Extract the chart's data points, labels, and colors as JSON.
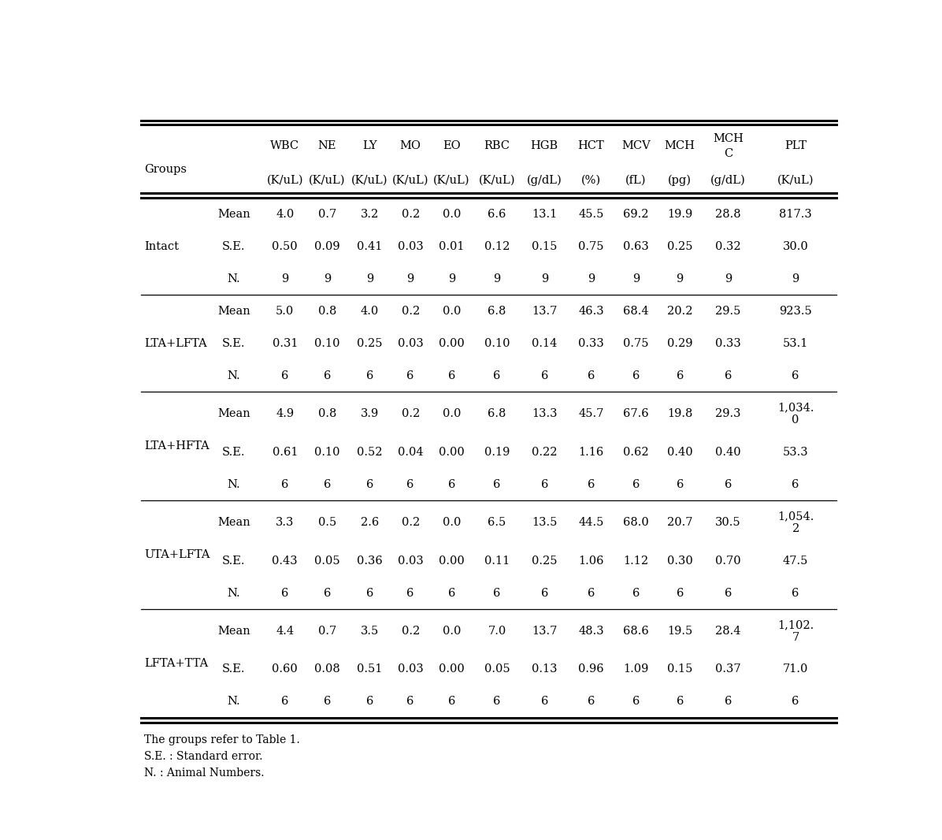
{
  "col_headers_line1": [
    "WBC",
    "NE",
    "LY",
    "MO",
    "EO",
    "RBC",
    "HGB",
    "HCT",
    "MCV",
    "MCH",
    "MCH\nC",
    "PLT"
  ],
  "col_headers_line2": [
    "(K/uL)",
    "(K/uL)",
    "(K/uL)",
    "(K/uL)",
    "(K/uL)",
    "(K/uL)",
    "(g/dL)",
    "(%)",
    "(fL)",
    "(pg)",
    "(g/dL)",
    "(K/uL)"
  ],
  "groups": [
    {
      "name": "Intact",
      "rows": [
        [
          "Mean",
          "4.0",
          "0.7",
          "3.2",
          "0.2",
          "0.0",
          "6.6",
          "13.1",
          "45.5",
          "69.2",
          "19.9",
          "28.8",
          "817.3"
        ],
        [
          "S.E.",
          "0.50",
          "0.09",
          "0.41",
          "0.03",
          "0.01",
          "0.12",
          "0.15",
          "0.75",
          "0.63",
          "0.25",
          "0.32",
          "30.0"
        ],
        [
          "N.",
          "9",
          "9",
          "9",
          "9",
          "9",
          "9",
          "9",
          "9",
          "9",
          "9",
          "9",
          "9"
        ]
      ],
      "tall_mean": false
    },
    {
      "name": "LTA+LFTA",
      "rows": [
        [
          "Mean",
          "5.0",
          "0.8",
          "4.0",
          "0.2",
          "0.0",
          "6.8",
          "13.7",
          "46.3",
          "68.4",
          "20.2",
          "29.5",
          "923.5"
        ],
        [
          "S.E.",
          "0.31",
          "0.10",
          "0.25",
          "0.03",
          "0.00",
          "0.10",
          "0.14",
          "0.33",
          "0.75",
          "0.29",
          "0.33",
          "53.1"
        ],
        [
          "N.",
          "6",
          "6",
          "6",
          "6",
          "6",
          "6",
          "6",
          "6",
          "6",
          "6",
          "6",
          "6"
        ]
      ],
      "tall_mean": false
    },
    {
      "name": "LTA+HFTA",
      "rows": [
        [
          "Mean",
          "4.9",
          "0.8",
          "3.9",
          "0.2",
          "0.0",
          "6.8",
          "13.3",
          "45.7",
          "67.6",
          "19.8",
          "29.3",
          "1,034.\n0"
        ],
        [
          "S.E.",
          "0.61",
          "0.10",
          "0.52",
          "0.04",
          "0.00",
          "0.19",
          "0.22",
          "1.16",
          "0.62",
          "0.40",
          "0.40",
          "53.3"
        ],
        [
          "N.",
          "6",
          "6",
          "6",
          "6",
          "6",
          "6",
          "6",
          "6",
          "6",
          "6",
          "6",
          "6"
        ]
      ],
      "tall_mean": true
    },
    {
      "name": "UTA+LFTA",
      "rows": [
        [
          "Mean",
          "3.3",
          "0.5",
          "2.6",
          "0.2",
          "0.0",
          "6.5",
          "13.5",
          "44.5",
          "68.0",
          "20.7",
          "30.5",
          "1,054.\n2"
        ],
        [
          "S.E.",
          "0.43",
          "0.05",
          "0.36",
          "0.03",
          "0.00",
          "0.11",
          "0.25",
          "1.06",
          "1.12",
          "0.30",
          "0.70",
          "47.5"
        ],
        [
          "N.",
          "6",
          "6",
          "6",
          "6",
          "6",
          "6",
          "6",
          "6",
          "6",
          "6",
          "6",
          "6"
        ]
      ],
      "tall_mean": true
    },
    {
      "name": "LFTA+TTA",
      "rows": [
        [
          "Mean",
          "4.4",
          "0.7",
          "3.5",
          "0.2",
          "0.0",
          "7.0",
          "13.7",
          "48.3",
          "68.6",
          "19.5",
          "28.4",
          "1,102.\n7"
        ],
        [
          "S.E.",
          "0.60",
          "0.08",
          "0.51",
          "0.03",
          "0.00",
          "0.05",
          "0.13",
          "0.96",
          "1.09",
          "0.15",
          "0.37",
          "71.0"
        ],
        [
          "N.",
          "6",
          "6",
          "6",
          "6",
          "6",
          "6",
          "6",
          "6",
          "6",
          "6",
          "6",
          "6"
        ]
      ],
      "tall_mean": true
    }
  ],
  "footnotes": [
    "The groups refer to Table 1.",
    "S.E. : Standard error.",
    "N. : Animal Numbers."
  ],
  "bg_color": "#ffffff",
  "font_size": 10.5,
  "footnote_font_size": 10
}
